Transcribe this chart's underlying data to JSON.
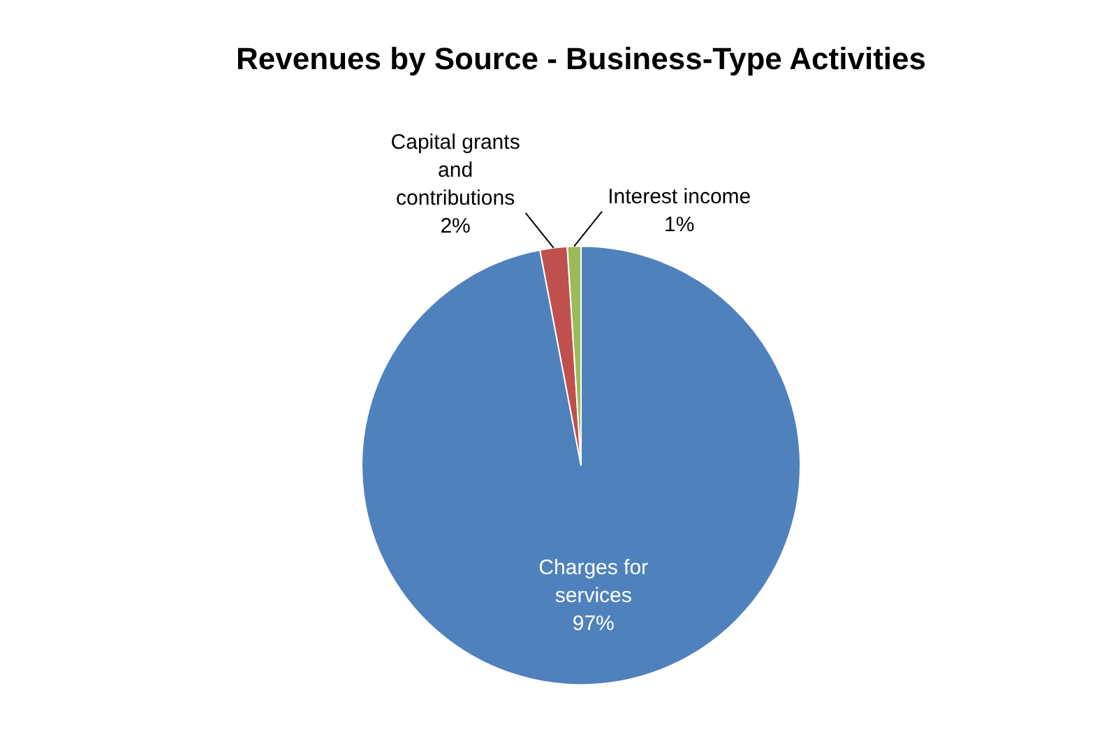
{
  "chart_data": {
    "type": "pie",
    "title": "Revenues by Source - Business-Type Activities",
    "categories": [
      "Charges for services",
      "Capital grants and contributions",
      "Interest income"
    ],
    "values": [
      97,
      2,
      1
    ],
    "colors": [
      "#4f81bd",
      "#c0504d",
      "#9bbb59"
    ],
    "value_labels": [
      "97%",
      "2%",
      "1%"
    ],
    "legend": false
  }
}
